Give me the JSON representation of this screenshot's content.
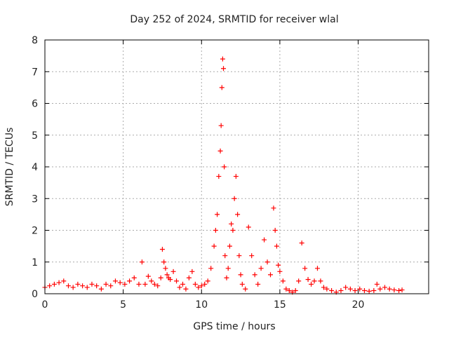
{
  "chart_data": {
    "type": "scatter",
    "title": "Day 252 of 2024, SRMTID for receiver wlal",
    "xlabel": "GPS time / hours",
    "ylabel": "SRMTID / TECUs",
    "xlim": [
      0,
      24.5
    ],
    "ylim": [
      0,
      8
    ],
    "xticks": [
      0,
      5,
      10,
      15,
      20
    ],
    "yticks": [
      0,
      1,
      2,
      3,
      4,
      5,
      6,
      7,
      8
    ],
    "grid": true,
    "marker": "+",
    "color": "#ff0000",
    "series": [
      {
        "name": "SRMTID",
        "x": [
          0.0,
          0.3,
          0.6,
          0.9,
          1.2,
          1.5,
          1.8,
          2.1,
          2.4,
          2.7,
          3.0,
          3.3,
          3.6,
          3.9,
          4.2,
          4.5,
          4.8,
          5.1,
          5.4,
          5.7,
          6.0,
          6.2,
          6.4,
          6.6,
          6.8,
          7.0,
          7.2,
          7.4,
          7.5,
          7.6,
          7.7,
          7.8,
          7.9,
          8.0,
          8.2,
          8.4,
          8.6,
          8.8,
          9.0,
          9.2,
          9.4,
          9.6,
          9.8,
          10.0,
          10.2,
          10.4,
          10.6,
          10.8,
          10.9,
          11.0,
          11.1,
          11.2,
          11.25,
          11.3,
          11.35,
          11.4,
          11.45,
          11.5,
          11.6,
          11.7,
          11.8,
          11.9,
          12.0,
          12.1,
          12.2,
          12.3,
          12.4,
          12.5,
          12.6,
          12.8,
          13.0,
          13.2,
          13.4,
          13.6,
          13.8,
          14.0,
          14.2,
          14.4,
          14.6,
          14.7,
          14.8,
          14.9,
          15.0,
          15.2,
          15.4,
          15.6,
          15.8,
          16.0,
          16.2,
          16.4,
          16.6,
          16.8,
          17.0,
          17.2,
          17.4,
          17.6,
          17.8,
          18.0,
          18.3,
          18.6,
          18.9,
          19.2,
          19.5,
          19.8,
          20.1,
          20.4,
          20.7,
          21.0,
          21.2,
          21.4,
          21.7,
          22.0,
          22.3,
          22.6,
          22.8
        ],
        "y": [
          0.2,
          0.25,
          0.3,
          0.35,
          0.4,
          0.25,
          0.2,
          0.3,
          0.25,
          0.2,
          0.3,
          0.25,
          0.15,
          0.3,
          0.25,
          0.4,
          0.35,
          0.3,
          0.4,
          0.5,
          0.3,
          1.0,
          0.3,
          0.55,
          0.4,
          0.3,
          0.25,
          0.5,
          1.4,
          1.0,
          0.8,
          0.6,
          0.5,
          0.45,
          0.7,
          0.4,
          0.2,
          0.3,
          0.15,
          0.5,
          0.7,
          0.3,
          0.2,
          0.25,
          0.3,
          0.4,
          0.8,
          1.5,
          2.0,
          2.5,
          3.7,
          4.5,
          5.3,
          6.5,
          7.4,
          7.1,
          4.0,
          1.2,
          0.5,
          0.8,
          1.5,
          2.2,
          2.0,
          3.0,
          3.7,
          2.5,
          1.2,
          0.6,
          0.3,
          0.15,
          2.1,
          1.2,
          0.6,
          0.3,
          0.8,
          1.7,
          1.0,
          0.6,
          2.7,
          2.0,
          1.5,
          0.9,
          0.7,
          0.4,
          0.15,
          0.1,
          0.05,
          0.1,
          0.4,
          1.6,
          0.8,
          0.45,
          0.3,
          0.4,
          0.8,
          0.4,
          0.2,
          0.15,
          0.1,
          0.05,
          0.1,
          0.2,
          0.15,
          0.1,
          0.15,
          0.1,
          0.08,
          0.1,
          0.3,
          0.15,
          0.2,
          0.15,
          0.12,
          0.1,
          0.12
        ]
      }
    ]
  }
}
